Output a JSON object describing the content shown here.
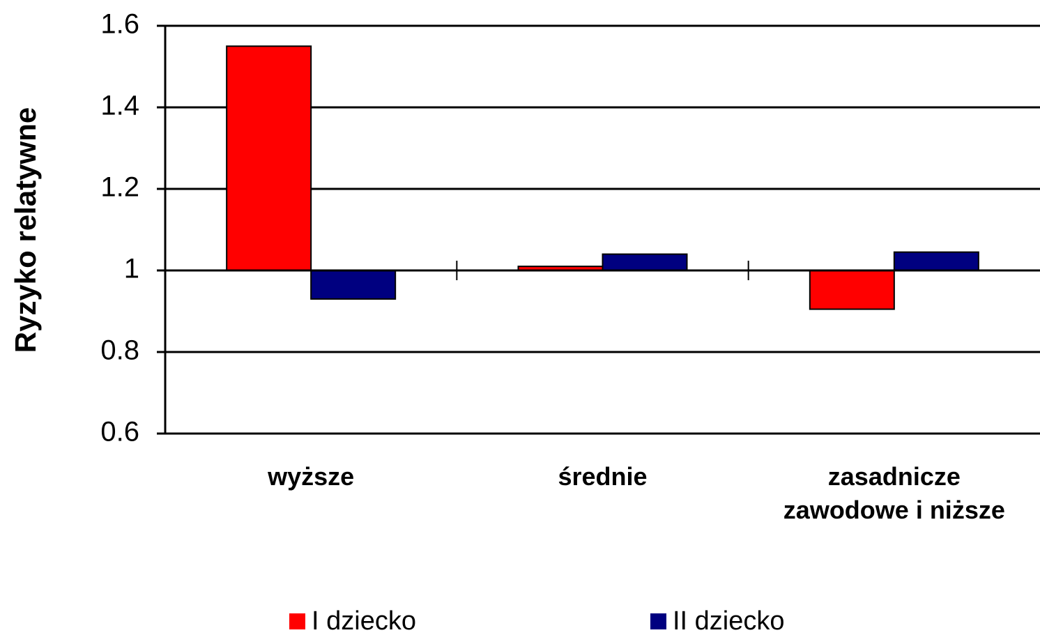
{
  "chart_data": {
    "type": "bar",
    "y_label": "Ryzyko relatywne",
    "categories": [
      "wyższe",
      "średnie",
      "zasadnicze\nzawodowe i niższe"
    ],
    "series": [
      {
        "name": "I dziecko",
        "color": "#ff0000",
        "values": [
          1.55,
          1.01,
          0.905
        ]
      },
      {
        "name": "II dziecko",
        "color": "#000080",
        "values": [
          0.93,
          1.04,
          1.045
        ]
      }
    ],
    "ylim": [
      0.6,
      1.6
    ],
    "yticks": [
      0.6,
      0.8,
      1,
      1.2,
      1.4,
      1.6
    ],
    "baseline": 1,
    "grid": true,
    "legend": "bottom"
  }
}
